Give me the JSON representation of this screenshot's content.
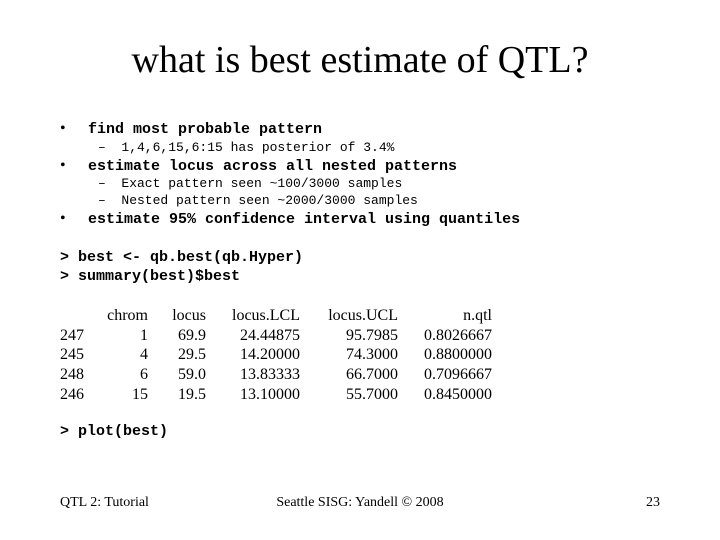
{
  "title": "what is best estimate of QTL?",
  "bullets": [
    {
      "marker": "•",
      "text": "find most probable pattern",
      "subs": [
        "–  1,4,6,15,6:15 has posterior of 3.4%"
      ]
    },
    {
      "marker": "•",
      "text": "estimate locus across all nested patterns",
      "subs": [
        "–  Exact pattern seen ~100/3000 samples",
        "–  Nested pattern seen ~2000/3000 samples"
      ]
    },
    {
      "marker": "•",
      "text": "estimate 95% confidence interval using quantiles",
      "subs": []
    }
  ],
  "code": {
    "line1": "> best <- qb.best(qb.Hyper)",
    "line2": "> summary(best)$best",
    "line3": "> plot(best)"
  },
  "table": {
    "headers": [
      "",
      "chrom",
      "locus",
      "locus.LCL",
      "locus.UCL",
      "n.qtl"
    ],
    "rows": [
      [
        "247",
        "1",
        "69.9",
        "24.44875",
        "95.7985",
        "0.8026667"
      ],
      [
        "245",
        "4",
        "29.5",
        "14.20000",
        "74.3000",
        "0.8800000"
      ],
      [
        "248",
        "6",
        "59.0",
        "13.83333",
        "66.7000",
        "0.7096667"
      ],
      [
        "246",
        "15",
        "19.5",
        "13.10000",
        "55.7000",
        "0.8450000"
      ]
    ]
  },
  "footer": {
    "left": "QTL 2: Tutorial",
    "center": "Seattle SISG: Yandell © 2008",
    "page": "23"
  }
}
